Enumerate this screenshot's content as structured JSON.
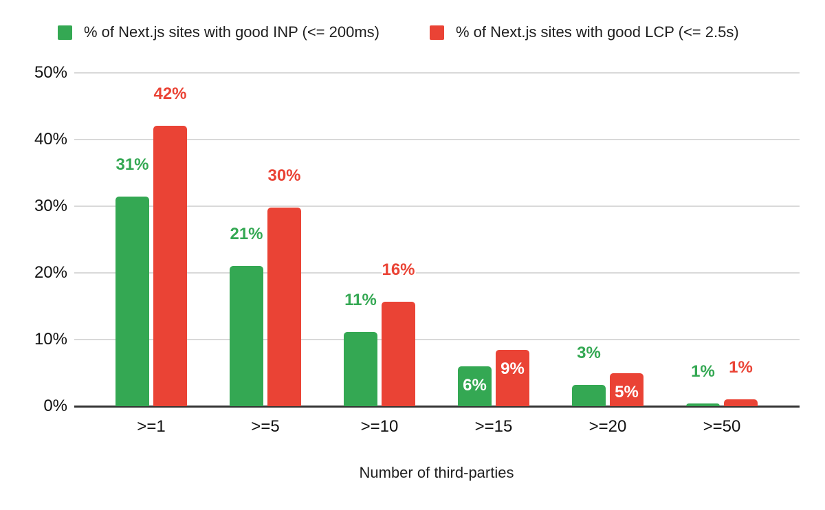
{
  "chart_data": {
    "type": "bar",
    "title": "",
    "xlabel": "Number of third-parties",
    "ylabel": "",
    "categories": [
      ">=1",
      ">=5",
      ">=10",
      ">=15",
      ">=20",
      ">=50"
    ],
    "series": [
      {
        "name": "% of Next.js sites with good INP (<= 200ms)",
        "color": "#34a853",
        "values": [
          31,
          21,
          11,
          6,
          3,
          1
        ],
        "value_labels": [
          "31%",
          "21%",
          "11%",
          "6%",
          "3%",
          "1%"
        ],
        "bar_heights_pct": [
          31.4,
          21.0,
          11.1,
          6.0,
          3.2,
          0.45
        ],
        "label_placement": [
          "above",
          "above",
          "above",
          "inside",
          "above",
          "above"
        ]
      },
      {
        "name": "% of Next.js sites with good LCP (<= 2.5s)",
        "color": "#ea4335",
        "values": [
          42,
          30,
          16,
          9,
          5,
          1
        ],
        "value_labels": [
          "42%",
          "30%",
          "16%",
          "9%",
          "5%",
          "1%"
        ],
        "bar_heights_pct": [
          42.1,
          29.8,
          15.7,
          8.5,
          4.9,
          1.0
        ],
        "label_placement": [
          "above",
          "above",
          "above",
          "inside",
          "inside",
          "above"
        ]
      }
    ],
    "y_ticks": [
      "0%",
      "10%",
      "20%",
      "30%",
      "40%",
      "50%"
    ],
    "y_tick_values": [
      0,
      10,
      20,
      30,
      40,
      50
    ],
    "ylim": [
      0,
      50
    ],
    "grid": true,
    "legend_position": "top",
    "styles": {
      "inside_label_color": "#ffffff",
      "gridline_color": "#d9d9d9",
      "axis_line_color": "#333333",
      "text_color": "#111111",
      "background": "#ffffff"
    }
  }
}
